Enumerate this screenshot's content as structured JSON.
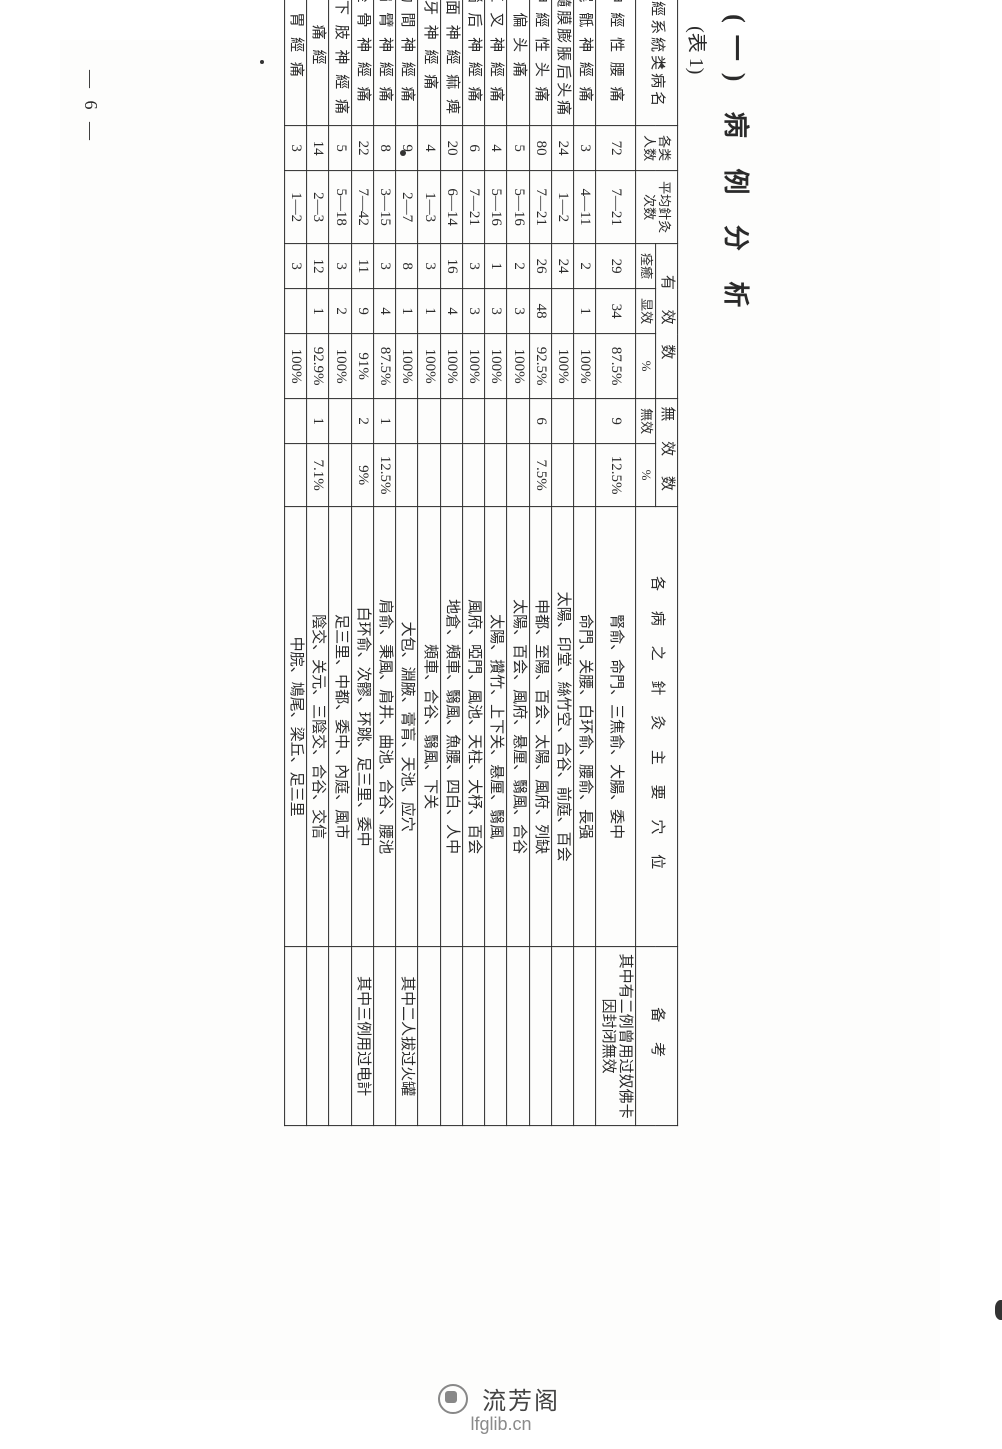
{
  "page_number_marker": "— 6 —",
  "title": "(一) 病 例 分 析",
  "subtitle": "(表 1)",
  "colors": {
    "text": "#2a2a2a",
    "background": "#ffffff",
    "border": "#2a2a2a",
    "footer_text": "#666666",
    "footer_logo": "#888888"
  },
  "typography": {
    "title_fontsize_pt": 20,
    "body_fontsize_pt": 11,
    "font_family": "SimSun"
  },
  "table": {
    "type": "table",
    "header": {
      "disease": "神經系統类病名",
      "cases": "各类人数",
      "avg": "平均針灸次数",
      "effective_group": "有 效 数",
      "eff_col1": "痊癒",
      "eff_col2": "显效",
      "eff_col3": "%",
      "ineffective_group": "無 效 数",
      "ineff_col1": "無效",
      "ineff_col2": "%",
      "points": "各 病 之 針 灸 主 要 穴 位",
      "remarks": "备      考"
    },
    "rows": [
      {
        "name": "神 經 性 腰 痛",
        "n": "72",
        "avg": "7—21",
        "e1": "29",
        "e2": "34",
        "e3": "87.5%",
        "i1": "9",
        "i2": "12.5%",
        "pts": "腎俞、命門、三焦俞、大腸、委中",
        "rem": "其中有二例曾用过奴佛卡因封闭無效"
      },
      {
        "name": "尾 骶 神 經 痛",
        "n": "3",
        "avg": "4—11",
        "e1": "2",
        "e2": "1",
        "e3": "100%",
        "i1": "",
        "i2": "",
        "pts": "命門、关腰、白环俞、腰俞、長强",
        "rem": ""
      },
      {
        "name": "脊髓膜膨脹后头痛",
        "n": "24",
        "avg": "1—2",
        "e1": "24",
        "e2": "",
        "e3": "100%",
        "i1": "",
        "i2": "",
        "pts": "太陽、印堂、絲竹空、合谷、前庭、百会",
        "rem": ""
      },
      {
        "name": "神 經 性 头 痛",
        "n": "80",
        "avg": "7—21",
        "e1": "26",
        "e2": "48",
        "e3": "92.5%",
        "i1": "6",
        "i2": "7.5%",
        "pts": "申都、至陽、百会、太陽、風府、列缺",
        "rem": ""
      },
      {
        "name": "偏     头     痛",
        "n": "5",
        "avg": "5—16",
        "e1": "2",
        "e2": "3",
        "e3": "100%",
        "i1": "",
        "i2": "",
        "pts": "太陽、百会、風府、悬厘、翳風、合谷",
        "rem": ""
      },
      {
        "name": "三 叉 神 經 痛",
        "n": "4",
        "avg": "5—16",
        "e1": "1",
        "e2": "3",
        "e3": "100%",
        "i1": "",
        "i2": "",
        "pts": "太陽、攢竹、上下关、悬厘、翳風",
        "rem": ""
      },
      {
        "name": "腦 后 神 經 痛",
        "n": "6",
        "avg": "7—21",
        "e1": "3",
        "e2": "3",
        "e3": "100%",
        "i1": "",
        "i2": "",
        "pts": "風府、啞門、風池、天柱、大杼、百会",
        "rem": ""
      },
      {
        "name": "顏 面 神 經 痲 痺",
        "n": "20",
        "avg": "6—14",
        "e1": "16",
        "e2": "4",
        "e3": "100%",
        "i1": "",
        "i2": "",
        "pts": "地倉、頰車、翳風、魚腰、四白、人中",
        "rem": ""
      },
      {
        "name": "牙   神   經   痛",
        "n": "4",
        "avg": "1—3",
        "e1": "3",
        "e2": "1",
        "e3": "100%",
        "i1": "",
        "i2": "",
        "pts": "頰車、合谷、翳風、下关",
        "rem": ""
      },
      {
        "name": "肋 間 神 經 痛",
        "n": "9",
        "avg": "2—7",
        "e1": "8",
        "e2": "1",
        "e3": "100%",
        "i1": "",
        "i2": "",
        "pts": "大包、淵腋、膏肓、天池、应穴",
        "rem": "其中二人拔过火罐"
      },
      {
        "name": "肩 臂 神 經 痛",
        "n": "8",
        "avg": "3—15",
        "e1": "3",
        "e2": "4",
        "e3": "87.5%",
        "i1": "1",
        "i2": "12.5%",
        "pts": "肩俞、秉風、肩井、曲池、合谷、腰池",
        "rem": ""
      },
      {
        "name": "坐 骨 神 經 痛",
        "n": "22",
        "avg": "7—42",
        "e1": "11",
        "e2": "9",
        "e3": "91%",
        "i1": "2",
        "i2": "9%",
        "pts": "白环俞、次髎、环跳、足三里、委中",
        "rem": "其中三例用过电計"
      },
      {
        "name": "兩 下 肢 神 經 痛",
        "n": "5",
        "avg": "5—18",
        "e1": "3",
        "e2": "2",
        "e3": "100%",
        "i1": "",
        "i2": "",
        "pts": "足三里、中都、委中、內庭、風市",
        "rem": ""
      },
      {
        "name": "痛          經",
        "n": "14",
        "avg": "2—3",
        "e1": "12",
        "e2": "1",
        "e3": "92.9%",
        "i1": "1",
        "i2": "7.1%",
        "pts": "陰交、关元、三陰交、合谷、交信",
        "rem": ""
      },
      {
        "name": "胃     經     痛",
        "n": "3",
        "avg": "1—2",
        "e1": "3",
        "e2": "",
        "e3": "100%",
        "i1": "",
        "i2": "",
        "pts": "中脘、鳩尾、梁丘、足三里",
        "rem": ""
      }
    ]
  },
  "footer": {
    "site_name": "流芳阁",
    "url": "lfglib.cn"
  }
}
